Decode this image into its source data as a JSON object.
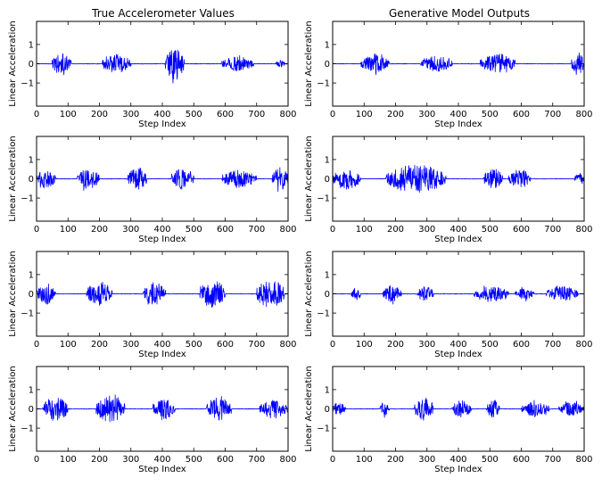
{
  "figure": {
    "columns": [
      {
        "title": "True Accelerometer Values"
      },
      {
        "title": "Generative Model Outputs"
      }
    ]
  },
  "style": {
    "line_color": "#0000ff",
    "axes_color": "#000000",
    "background": "#ffffff"
  },
  "chart_data": [
    {
      "type": "line",
      "row": 0,
      "col": 0,
      "title": "True Accelerometer Values",
      "xlabel": "Step Index",
      "ylabel": "Linear Acceleration",
      "xlim": [
        0,
        800
      ],
      "ylim": [
        -2.2,
        2.2
      ],
      "xticks": [
        0,
        100,
        200,
        300,
        400,
        500,
        600,
        700,
        800
      ],
      "yticks": [
        1,
        0,
        -1
      ],
      "series": [
        {
          "bursts": [
            [
              50,
              110,
              0.55
            ],
            [
              210,
              300,
              0.5
            ],
            [
              410,
              470,
              0.85
            ],
            [
              590,
              690,
              0.4
            ],
            [
              760,
              790,
              0.2
            ]
          ]
        }
      ]
    },
    {
      "type": "line",
      "row": 0,
      "col": 1,
      "title": "Generative Model Outputs",
      "xlabel": "Step Index",
      "ylabel": "Linear Acceleration",
      "xlim": [
        0,
        800
      ],
      "ylim": [
        -2.2,
        2.2
      ],
      "xticks": [
        0,
        100,
        200,
        300,
        400,
        500,
        600,
        700,
        800
      ],
      "yticks": [
        1,
        0,
        -1
      ],
      "series": [
        {
          "bursts": [
            [
              90,
              180,
              0.45
            ],
            [
              280,
              380,
              0.4
            ],
            [
              470,
              580,
              0.55
            ],
            [
              760,
              800,
              0.6
            ]
          ]
        }
      ]
    },
    {
      "type": "line",
      "row": 1,
      "col": 0,
      "xlabel": "Step Index",
      "ylabel": "Linear Acceleration",
      "xlim": [
        0,
        800
      ],
      "ylim": [
        -2.2,
        2.2
      ],
      "xticks": [
        0,
        100,
        200,
        300,
        400,
        500,
        600,
        700,
        800
      ],
      "yticks": [
        1,
        0,
        -1
      ],
      "series": [
        {
          "bursts": [
            [
              0,
              60,
              0.5
            ],
            [
              130,
              200,
              0.55
            ],
            [
              290,
              350,
              0.65
            ],
            [
              430,
              500,
              0.55
            ],
            [
              590,
              700,
              0.45
            ],
            [
              750,
              800,
              0.6
            ]
          ]
        }
      ]
    },
    {
      "type": "line",
      "row": 1,
      "col": 1,
      "xlabel": "Step Index",
      "ylabel": "Linear Acceleration",
      "xlim": [
        0,
        800
      ],
      "ylim": [
        -2.2,
        2.2
      ],
      "xticks": [
        0,
        100,
        200,
        300,
        400,
        500,
        600,
        700,
        800
      ],
      "yticks": [
        1,
        0,
        -1
      ],
      "series": [
        {
          "bursts": [
            [
              0,
              90,
              0.55
            ],
            [
              170,
              360,
              0.75
            ],
            [
              480,
              540,
              0.55
            ],
            [
              560,
              630,
              0.5
            ],
            [
              770,
              800,
              0.35
            ]
          ]
        }
      ]
    },
    {
      "type": "line",
      "row": 2,
      "col": 0,
      "xlabel": "Step Index",
      "ylabel": "Linear Acceleration",
      "xlim": [
        0,
        800
      ],
      "ylim": [
        -2.2,
        2.2
      ],
      "xticks": [
        0,
        100,
        200,
        300,
        400,
        500,
        600,
        700,
        800
      ],
      "yticks": [
        1,
        0,
        -1
      ],
      "series": [
        {
          "bursts": [
            [
              0,
              60,
              0.55
            ],
            [
              160,
              240,
              0.65
            ],
            [
              340,
              410,
              0.6
            ],
            [
              520,
              600,
              0.75
            ],
            [
              700,
              790,
              0.8
            ]
          ]
        }
      ]
    },
    {
      "type": "line",
      "row": 2,
      "col": 1,
      "xlabel": "Step Index",
      "ylabel": "Linear Acceleration",
      "xlim": [
        0,
        800
      ],
      "ylim": [
        -2.2,
        2.2
      ],
      "xticks": [
        0,
        100,
        200,
        300,
        400,
        500,
        600,
        700,
        800
      ],
      "yticks": [
        1,
        0,
        -1
      ],
      "series": [
        {
          "bursts": [
            [
              60,
              90,
              0.35
            ],
            [
              160,
              220,
              0.45
            ],
            [
              270,
              320,
              0.4
            ],
            [
              450,
              560,
              0.4
            ],
            [
              580,
              640,
              0.3
            ],
            [
              680,
              780,
              0.4
            ]
          ]
        }
      ]
    },
    {
      "type": "line",
      "row": 3,
      "col": 0,
      "xlabel": "Step Index",
      "ylabel": "Linear Acceleration",
      "xlim": [
        0,
        800
      ],
      "ylim": [
        -2.2,
        2.2
      ],
      "xticks": [
        0,
        100,
        200,
        300,
        400,
        500,
        600,
        700,
        800
      ],
      "yticks": [
        1,
        0,
        -1
      ],
      "series": [
        {
          "bursts": [
            [
              20,
              100,
              0.65
            ],
            [
              190,
              280,
              0.75
            ],
            [
              370,
              440,
              0.55
            ],
            [
              540,
              620,
              0.65
            ],
            [
              710,
              800,
              0.45
            ]
          ]
        }
      ]
    },
    {
      "type": "line",
      "row": 3,
      "col": 1,
      "xlabel": "Step Index",
      "ylabel": "Linear Acceleration",
      "xlim": [
        0,
        800
      ],
      "ylim": [
        -2.2,
        2.2
      ],
      "xticks": [
        0,
        100,
        200,
        300,
        400,
        500,
        600,
        700,
        800
      ],
      "yticks": [
        1,
        0,
        -1
      ],
      "series": [
        {
          "bursts": [
            [
              0,
              40,
              0.35
            ],
            [
              150,
              180,
              0.35
            ],
            [
              260,
              320,
              0.6
            ],
            [
              380,
              440,
              0.45
            ],
            [
              490,
              530,
              0.45
            ],
            [
              600,
              690,
              0.4
            ],
            [
              720,
              800,
              0.35
            ]
          ]
        }
      ]
    }
  ]
}
